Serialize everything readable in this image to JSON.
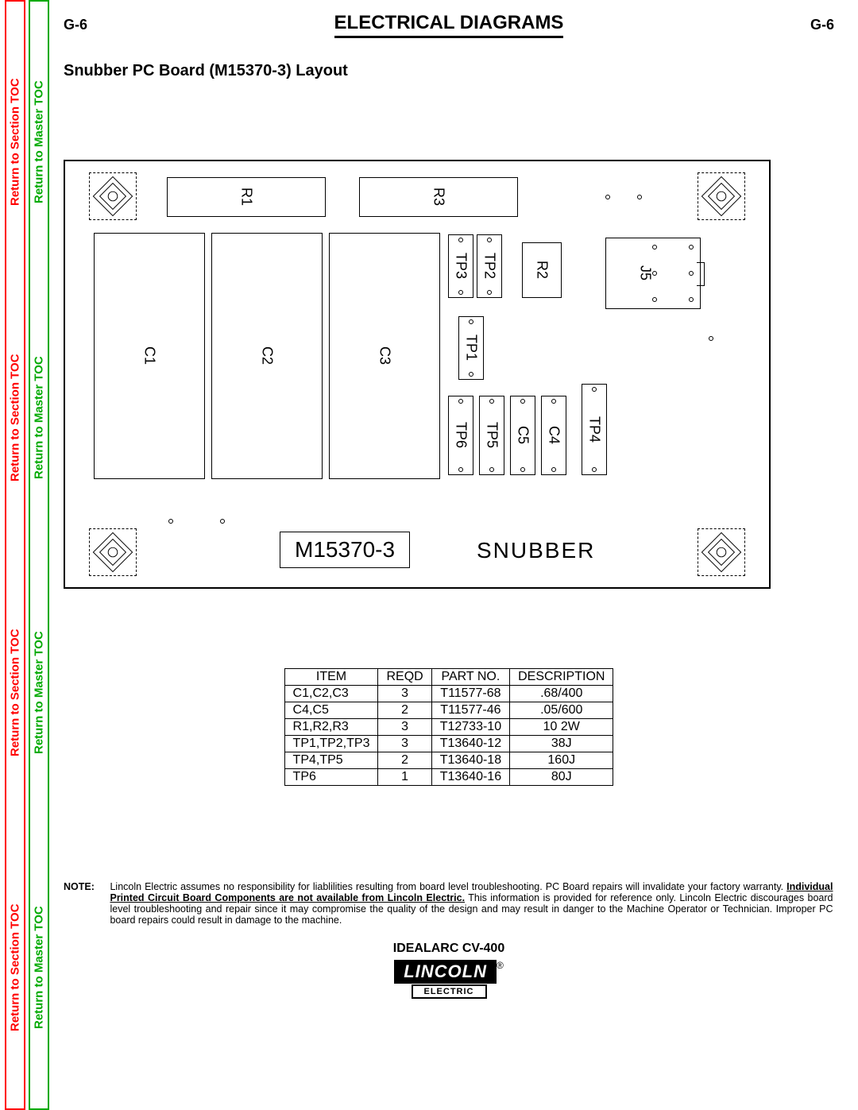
{
  "sidebar": {
    "section": [
      "Return to Section TOC",
      "Return to Section TOC",
      "Return to Section TOC",
      "Return to Section TOC"
    ],
    "master": [
      "Return to Master TOC",
      "Return to Master TOC",
      "Return to Master TOC",
      "Return to Master TOC"
    ]
  },
  "header": {
    "page_left": "G-6",
    "title": "ELECTRICAL DIAGRAMS",
    "page_right": "G-6"
  },
  "subtitle": "Snubber PC Board (M15370-3) Layout",
  "board": {
    "label_left": "M15370-3",
    "label_right": "SNUBBER",
    "components": {
      "R1": "R1",
      "R3": "R3",
      "R2": "R2",
      "J5": "J5",
      "C1": "C1",
      "C2": "C2",
      "C3": "C3",
      "C4": "C4",
      "C5": "C5",
      "TP1": "TP1",
      "TP2": "TP2",
      "TP3": "TP3",
      "TP4": "TP4",
      "TP5": "TP5",
      "TP6": "TP6"
    }
  },
  "table": {
    "headers": [
      "ITEM",
      "REQD",
      "PART NO.",
      "DESCRIPTION"
    ],
    "rows": [
      [
        "C1,C2,C3",
        "3",
        "T11577-68",
        ".68/400"
      ],
      [
        "C4,C5",
        "2",
        "T11577-46",
        ".05/600"
      ],
      [
        "R1,R2,R3",
        "3",
        "T12733-10",
        "10 2W"
      ],
      [
        "TP1,TP2,TP3",
        "3",
        "T13640-12",
        "38J"
      ],
      [
        "TP4,TP5",
        "2",
        "T13640-18",
        "160J"
      ],
      [
        "TP6",
        "1",
        "T13640-16",
        "80J"
      ]
    ]
  },
  "note": {
    "label": "NOTE:",
    "pre": "Lincoln Electric assumes no responsibility for liablilities resulting from board level troubleshooting. PC Board repairs will invalidate your factory warranty. ",
    "underline": "Individual Printed Circuit Board Components are not available from Lincoln Electric.",
    "post": " This information is provided for reference only. Lincoln Electric discourages board level troubleshooting and repair since it may compromise the quality of the design and may result in danger to the Machine Operator or Technician. Improper PC board repairs could result in damage to the machine."
  },
  "footer": {
    "model": "IDEALARC CV-400",
    "brand": "LINCOLN",
    "brand_sub": "ELECTRIC",
    "reg": "®"
  }
}
